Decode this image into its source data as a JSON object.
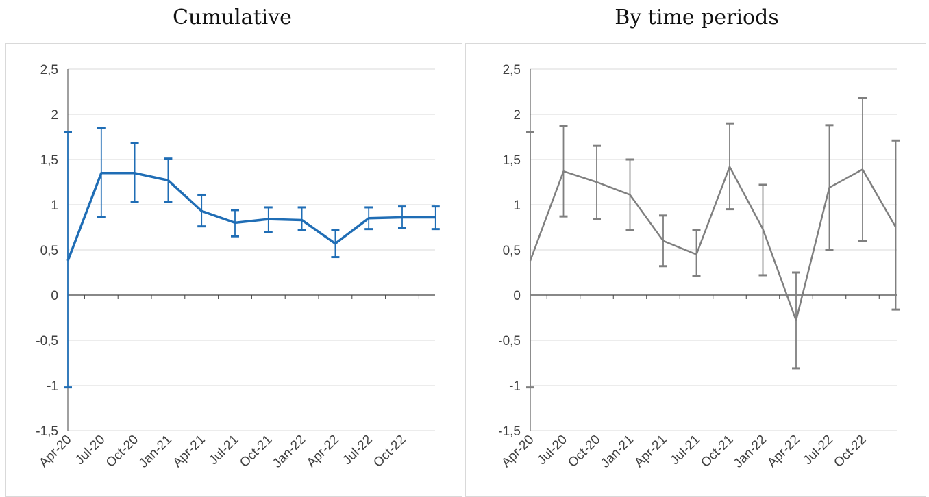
{
  "titles": {
    "cumulative": "Cumulative",
    "periods": "By time periods"
  },
  "chart_data": [
    {
      "type": "line",
      "title": "Cumulative",
      "color": "#1f6db5",
      "categories": [
        "Apr-20",
        "Jul-20",
        "Oct-20",
        "Jan-21",
        "Apr-21",
        "Jul-21",
        "Oct-21",
        "Jan-22",
        "Apr-22",
        "Jul-22",
        "Oct-22",
        ""
      ],
      "ticks_y": [
        "2,5",
        "2",
        "1,5",
        "1",
        "0,5",
        "0",
        "-0,5",
        "-1",
        "-1,5"
      ],
      "ylim": [
        -1.5,
        2.5
      ],
      "grid": true,
      "series": [
        {
          "values": [
            0.38,
            1.35,
            1.35,
            1.27,
            0.93,
            0.8,
            0.84,
            0.83,
            0.57,
            0.85,
            0.86,
            0.86
          ],
          "err_low": [
            -1.02,
            0.86,
            1.03,
            1.03,
            0.76,
            0.65,
            0.7,
            0.72,
            0.42,
            0.73,
            0.74,
            0.73
          ],
          "err_high": [
            1.8,
            1.85,
            1.68,
            1.51,
            1.11,
            0.94,
            0.97,
            0.97,
            0.72,
            0.97,
            0.98,
            0.98
          ]
        }
      ]
    },
    {
      "type": "line",
      "title": "By time periods",
      "color": "#7f7f7f",
      "categories": [
        "Apr-20",
        "Jul-20",
        "Oct-20",
        "Jan-21",
        "Apr-21",
        "Jul-21",
        "Oct-21",
        "Jan-22",
        "Apr-22",
        "Jul-22",
        "Oct-22",
        ""
      ],
      "ticks_y": [
        "2,5",
        "2",
        "1,5",
        "1",
        "0,5",
        "0",
        "-0,5",
        "-1",
        "-1,5"
      ],
      "ylim": [
        -1.5,
        2.5
      ],
      "grid": true,
      "series": [
        {
          "values": [
            0.38,
            1.37,
            1.25,
            1.11,
            0.6,
            0.45,
            1.42,
            0.73,
            -0.28,
            1.19,
            1.39,
            0.75
          ],
          "err_low": [
            -1.02,
            0.87,
            0.84,
            0.72,
            0.32,
            0.21,
            0.95,
            0.22,
            -0.81,
            0.5,
            0.6,
            -0.16
          ],
          "err_high": [
            1.8,
            1.87,
            1.65,
            1.5,
            0.88,
            0.72,
            1.9,
            1.22,
            0.25,
            1.88,
            2.18,
            1.71
          ]
        }
      ]
    }
  ]
}
